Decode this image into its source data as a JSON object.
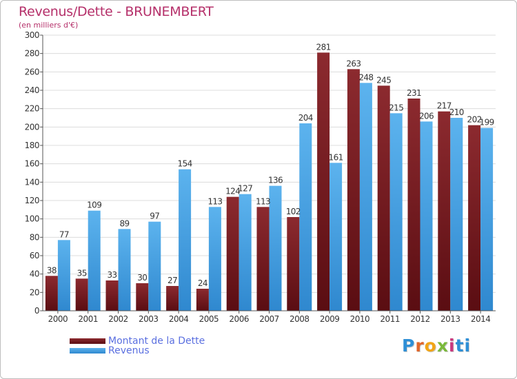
{
  "chart_data": {
    "type": "bar",
    "title": "Revenus/Dette - BRUNEMBERT",
    "subtitle": "(en milliers d'€)",
    "categories": [
      "2000",
      "2001",
      "2002",
      "2003",
      "2004",
      "2005",
      "2006",
      "2007",
      "2008",
      "2009",
      "2010",
      "2011",
      "2012",
      "2013",
      "2014"
    ],
    "series": [
      {
        "name": "Montant de la Dette",
        "color": "#7b1d22",
        "values": [
          38,
          35,
          33,
          30,
          27,
          24,
          124,
          113,
          102,
          281,
          263,
          245,
          231,
          217,
          202
        ]
      },
      {
        "name": "Revenus",
        "color": "#4ea7e6",
        "values": [
          77,
          109,
          89,
          97,
          154,
          113,
          127,
          136,
          204,
          161,
          248,
          215,
          206,
          210,
          199
        ]
      }
    ],
    "ylim": [
      0,
      300
    ],
    "yticks": [
      0,
      20,
      40,
      60,
      80,
      100,
      120,
      140,
      160,
      180,
      200,
      220,
      240,
      260,
      280,
      300
    ],
    "grid": true,
    "legend": "bottom-left"
  },
  "logo": {
    "text": "Proxiti",
    "letters": [
      "P",
      "r",
      "o",
      "x",
      "i",
      "ti"
    ]
  }
}
